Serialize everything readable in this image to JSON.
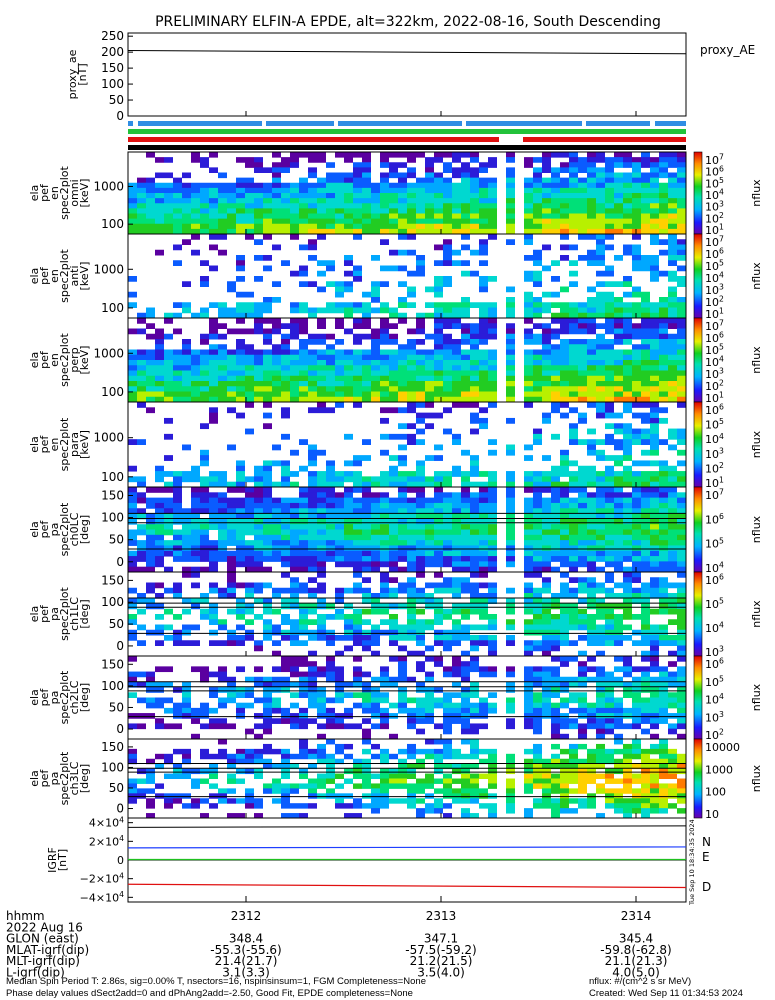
{
  "title": "PRELIMINARY ELFIN-A EPDE, alt=322km, 2022-08-16, South Descending",
  "colors": {
    "ae_line": "#000000",
    "bar_blue": "#2f8de4",
    "bar_green": "#22c33a",
    "bar_red": "#e01010",
    "bar_black": "#000000",
    "grf_N": "#1f3fff",
    "grf_E": "#1fc01f",
    "grf_D": "#e01010"
  },
  "panels": {
    "proxy_ae": {
      "ylabel_lines": [
        "proxy_ae",
        "[nT]"
      ],
      "yticks": [
        "250",
        "200",
        "150",
        "100",
        "50",
        "0"
      ],
      "legend": "proxy_AE"
    },
    "spectrograms": [
      {
        "ylabel_lines": [
          "ela",
          "pef",
          "en",
          "spec2plot",
          "omni",
          "[keV]"
        ],
        "yticks": [
          "1000",
          "100"
        ],
        "cbar_ticks": [
          "10^7",
          "10^6",
          "10^5",
          "10^4",
          "10^3",
          "10^2",
          "10^1"
        ],
        "cbar_label": "nflux"
      },
      {
        "ylabel_lines": [
          "ela",
          "pef",
          "en",
          "spec2plot",
          "anti",
          "[keV]"
        ],
        "yticks": [
          "1000",
          "100"
        ],
        "cbar_ticks": [
          "10^7",
          "10^6",
          "10^5",
          "10^4",
          "10^3",
          "10^2",
          "10^1"
        ],
        "cbar_label": "nflux"
      },
      {
        "ylabel_lines": [
          "ela",
          "pef",
          "en",
          "spec2plot",
          "perp",
          "[keV]"
        ],
        "yticks": [
          "1000",
          "100"
        ],
        "cbar_ticks": [
          "10^7",
          "10^6",
          "10^5",
          "10^4",
          "10^3",
          "10^2",
          "10^1"
        ],
        "cbar_label": "nflux"
      },
      {
        "ylabel_lines": [
          "ela",
          "pef",
          "en",
          "spec2plot",
          "para",
          "[keV]"
        ],
        "yticks": [
          "1000",
          "100"
        ],
        "cbar_ticks": [
          "10^6",
          "10^5",
          "10^4",
          "10^3",
          "10^2",
          "10^1"
        ],
        "cbar_label": "nflux"
      },
      {
        "ylabel_lines": [
          "ela",
          "pef",
          "pa",
          "spec2plot",
          "ch0LC",
          "[deg]"
        ],
        "yticks": [
          "150",
          "100",
          "50",
          "0"
        ],
        "cbar_ticks": [
          "10^7",
          "10^6",
          "10^5",
          "10^4"
        ],
        "cbar_label": "nflux"
      },
      {
        "ylabel_lines": [
          "ela",
          "pef",
          "pa",
          "spec2plot",
          "ch1LC",
          "[deg]"
        ],
        "yticks": [
          "150",
          "100",
          "50",
          "0"
        ],
        "cbar_ticks": [
          "10^6",
          "10^5",
          "10^4",
          "10^3"
        ],
        "cbar_label": "nflux"
      },
      {
        "ylabel_lines": [
          "ela",
          "pef",
          "pa",
          "spec2plot",
          "ch2LC",
          "[deg]"
        ],
        "yticks": [
          "150",
          "100",
          "50",
          "0"
        ],
        "cbar_ticks": [
          "10^6",
          "10^5",
          "10^4",
          "10^3",
          "10^2"
        ],
        "cbar_label": "nflux"
      },
      {
        "ylabel_lines": [
          "ela",
          "pef",
          "pa",
          "spec2plot",
          "ch3LC",
          "[deg]"
        ],
        "yticks": [
          "150",
          "100",
          "50",
          "0"
        ],
        "cbar_ticks": [
          "10000",
          "1000",
          "100",
          "10"
        ],
        "cbar_label": "nflux"
      }
    ],
    "igrf": {
      "ylabel_lines": [
        "IGRF",
        "[nT]"
      ],
      "yticks": [
        "4×10^4",
        "2×10^4",
        "0",
        "−2×10^4",
        "−4×10^4"
      ],
      "legend": [
        "N",
        "E",
        "D"
      ],
      "side_stamp": "Tue Sep 10 18:34:35 2024"
    }
  },
  "chart_data": {
    "type": "heatmap",
    "x_tick_labels": [
      "2312",
      "2313",
      "2314"
    ],
    "proxy_ae_series": {
      "x": [
        "2311.5",
        "2314.5"
      ],
      "values": [
        205,
        195
      ],
      "ylim": [
        0,
        260
      ]
    },
    "igrf_series": [
      {
        "name": "N",
        "x": [
          "2311.5",
          "2314.5"
        ],
        "values": [
          13000,
          14000
        ]
      },
      {
        "name": "E",
        "x": [
          "2311.5",
          "2314.5"
        ],
        "values": [
          500,
          500
        ]
      },
      {
        "name": "D",
        "x": [
          "2311.5",
          "2314.5"
        ],
        "values": [
          -26000,
          -29500
        ]
      }
    ],
    "igrf_ylim": [
      -45000,
      45000
    ]
  },
  "footer": {
    "rows": [
      {
        "label": "hhmm",
        "values": [
          "",
          "",
          ""
        ]
      },
      {
        "label": "2022 Aug 16",
        "values": [
          "",
          "",
          ""
        ]
      },
      {
        "label": "GLON (east)",
        "values": [
          "348.4",
          "347.1",
          "345.4"
        ]
      },
      {
        "label": "MLAT-igrf(dip)",
        "values": [
          "-55.3(-55.6)",
          "-57.5(-59.2)",
          "-59.8(-62.8)"
        ]
      },
      {
        "label": "MLT-igrf(dip)",
        "values": [
          "21.4(21.7)",
          "21.2(21.5)",
          "21.1(21.3)"
        ]
      },
      {
        "label": "L-igrf(dip)",
        "values": [
          "3.1(3.3)",
          "3.5(4.0)",
          "4.0(5.0)"
        ]
      }
    ],
    "note1": "Median Spin Period T: 2.86s, sig=0.00% T, nsectors=16, nspinsinsum=1, FGM Completeness=None",
    "note1_right": "nflux: #/(cm^2 s sr MeV)",
    "note2": "Phase delay values dSect2add=0 and dPhAng2add=-2.50, Good Fit, EPDE completeness=None",
    "note2_right": "Created: Wed Sep 11 01:34:53 2024"
  }
}
